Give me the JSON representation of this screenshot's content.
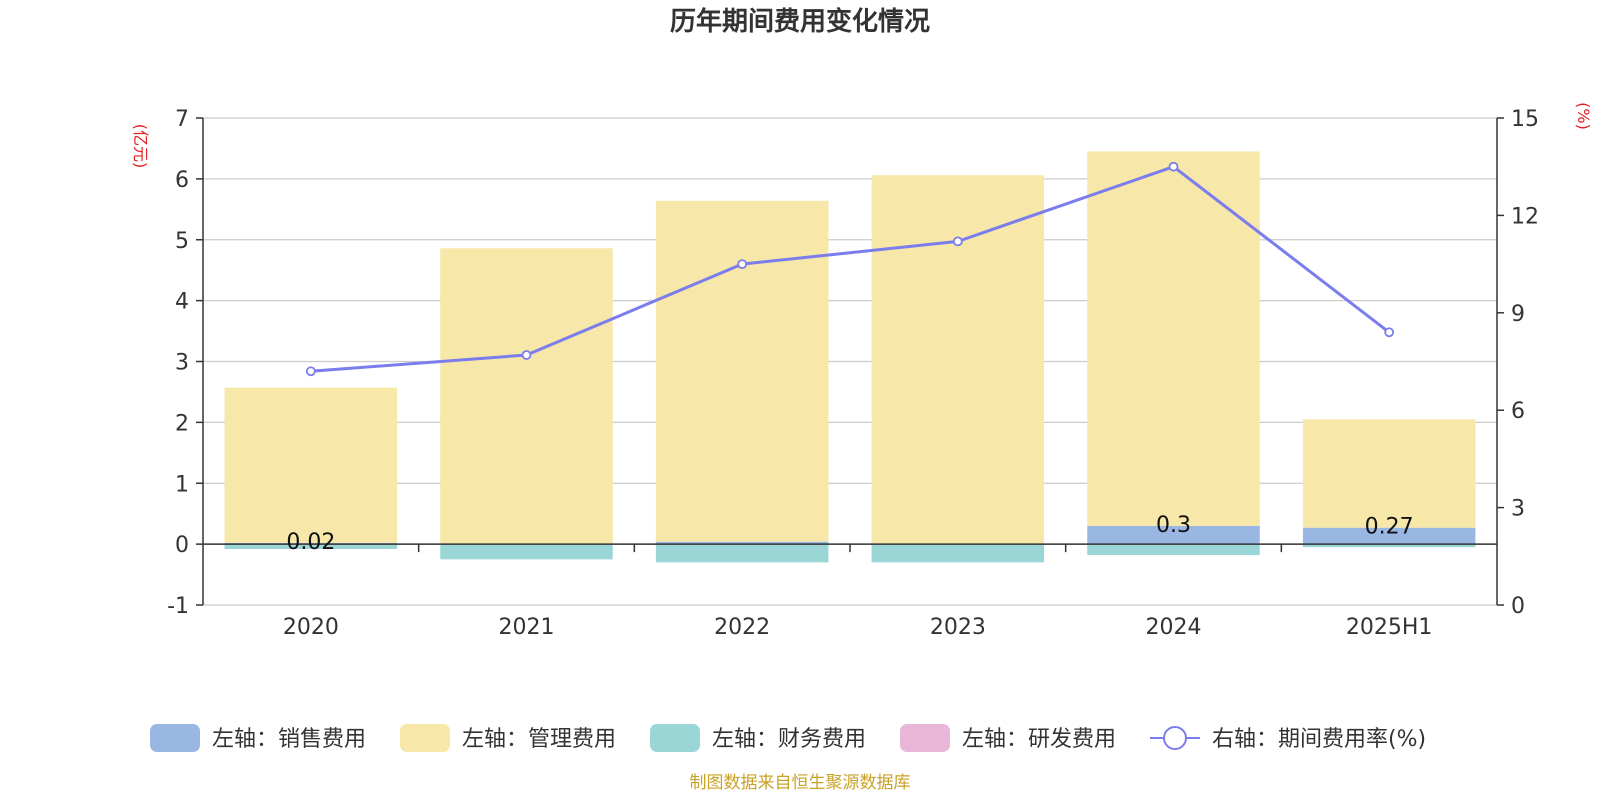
{
  "colors": {
    "sales": "#9ab6e3",
    "admin": "#f7e7a8",
    "finance": "#9ad6d6",
    "rd": "#e8b7d8",
    "rate_line": "#7b7ded",
    "unit_text": "#e02020",
    "footer_text": "#c9a227"
  },
  "chart_data": {
    "type": "bar",
    "title": "历年期间费用变化情况",
    "left_unit": "(亿元)",
    "right_unit": "(%)",
    "categories": [
      "2020",
      "2021",
      "2022",
      "2023",
      "2024",
      "2025H1"
    ],
    "left_axis": {
      "min": -1,
      "max": 7,
      "ticks": [
        "-1",
        "0",
        "1",
        "2",
        "3",
        "4",
        "5",
        "6",
        "7"
      ]
    },
    "right_axis": {
      "min": 0,
      "max": 15,
      "ticks": [
        "0",
        "3",
        "6",
        "9",
        "12",
        "15"
      ]
    },
    "grid": true,
    "legend_position": "bottom",
    "series": [
      {
        "name": "左轴：销售费用",
        "axis": "left",
        "type": "bar",
        "values": [
          0.02,
          0.01,
          0.04,
          0.01,
          0.3,
          0.27
        ],
        "labels": [
          "0.02",
          "",
          "",
          "",
          "0.3",
          "0.27"
        ]
      },
      {
        "name": "左轴：管理费用",
        "axis": "left",
        "type": "bar",
        "values": [
          2.55,
          4.85,
          5.6,
          6.05,
          6.15,
          1.78
        ]
      },
      {
        "name": "左轴：财务费用",
        "axis": "left",
        "type": "bar",
        "values": [
          -0.08,
          -0.25,
          -0.3,
          -0.3,
          -0.18,
          -0.05
        ]
      },
      {
        "name": "左轴：研发费用",
        "axis": "left",
        "type": "bar",
        "values": [
          0,
          0,
          0,
          0,
          0,
          0
        ]
      },
      {
        "name": "右轴：期间费用率(%)",
        "axis": "right",
        "type": "line",
        "values": [
          7.2,
          7.7,
          10.5,
          11.2,
          13.5,
          8.4
        ]
      }
    ]
  },
  "footer": "制图数据来自恒生聚源数据库"
}
